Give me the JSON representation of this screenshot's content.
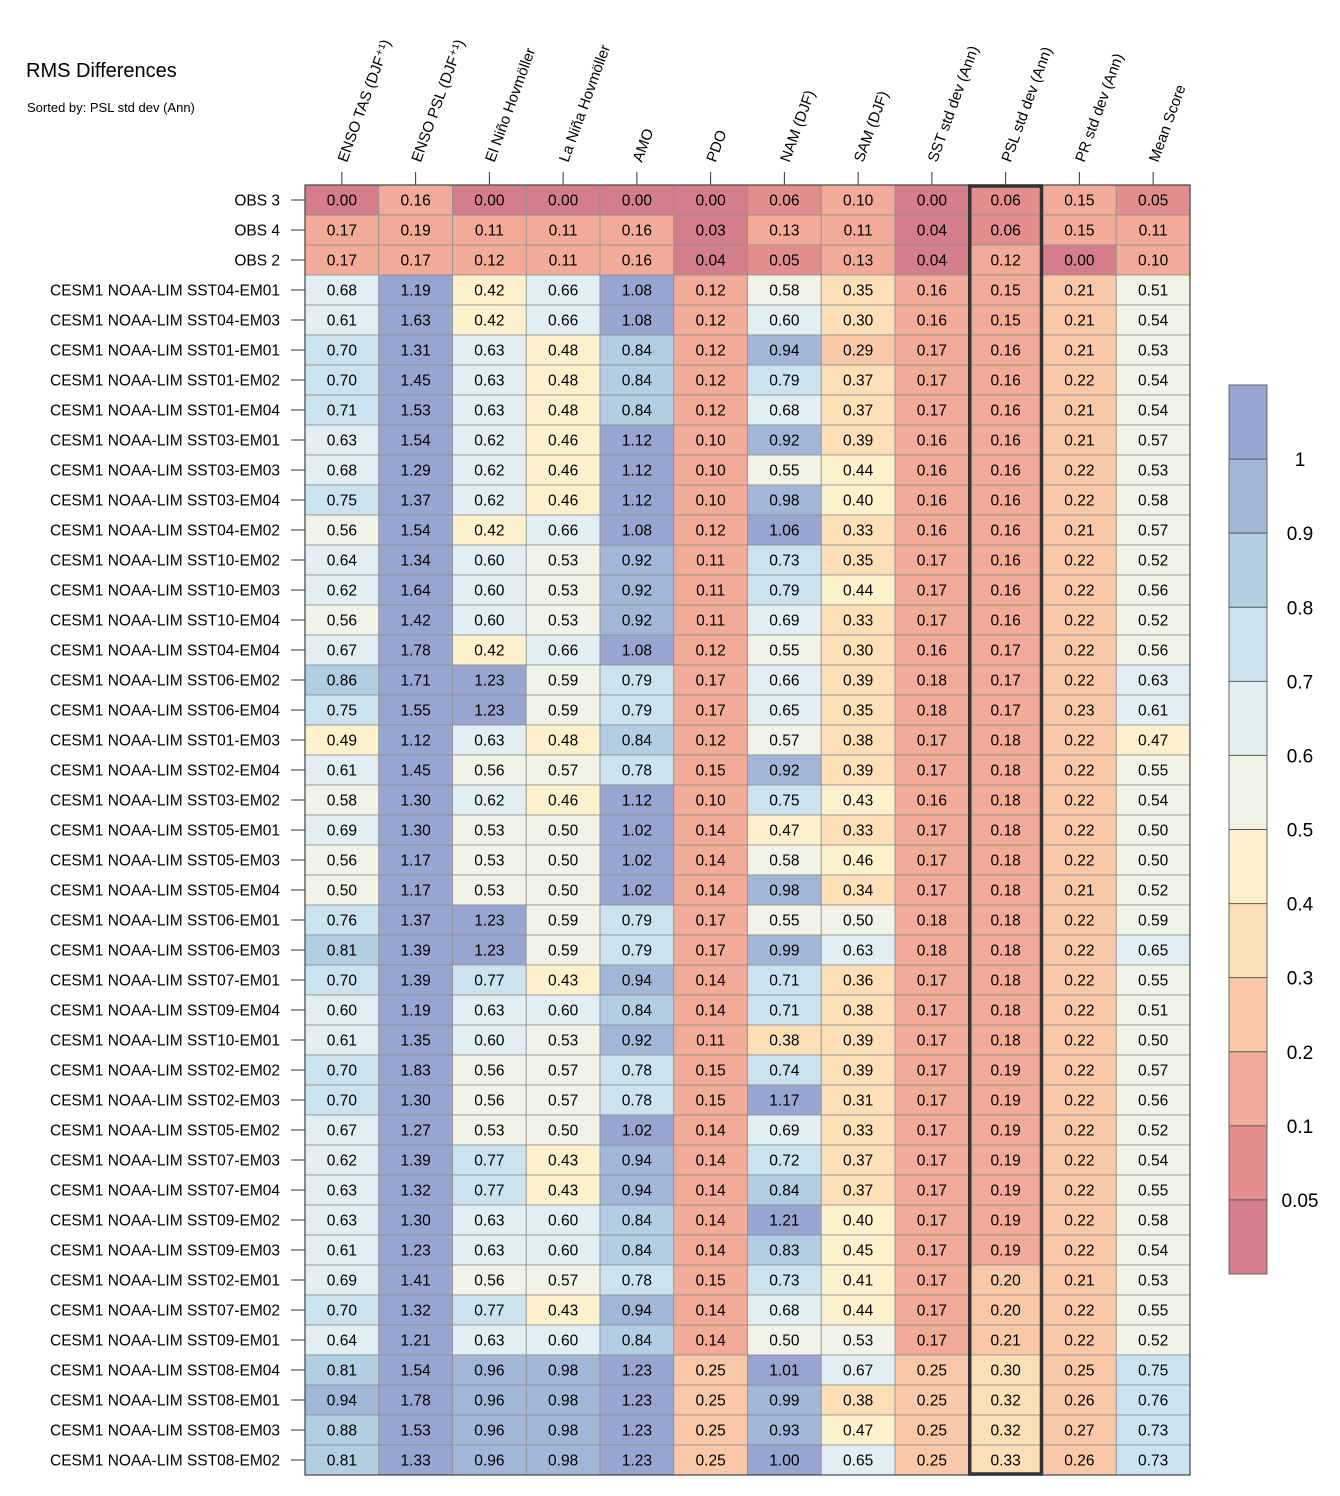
{
  "title": "RMS Differences",
  "subtitle": "Sorted by: PSL std dev (Ann)",
  "chart_data": {
    "type": "heatmap",
    "highlighted_column": "PSL std dev (Ann)",
    "columns": [
      "ENSO TAS (DJF⁺¹)",
      "ENSO PSL (DJF⁺¹)",
      "El Niño Hovmöller",
      "La Niña Hovmöller",
      "AMO",
      "PDO",
      "NAM (DJF)",
      "SAM (DJF)",
      "SST std dev (Ann)",
      "PSL std dev (Ann)",
      "PR std dev (Ann)",
      "Mean Score"
    ],
    "rows": [
      {
        "name": "OBS 3",
        "values": [
          0.0,
          0.16,
          0.0,
          0.0,
          0.0,
          0.0,
          0.06,
          0.1,
          0.0,
          0.06,
          0.15,
          0.05
        ]
      },
      {
        "name": "OBS 4",
        "values": [
          0.17,
          0.19,
          0.11,
          0.11,
          0.16,
          0.03,
          0.13,
          0.11,
          0.04,
          0.06,
          0.15,
          0.11
        ]
      },
      {
        "name": "OBS 2",
        "values": [
          0.17,
          0.17,
          0.12,
          0.11,
          0.16,
          0.04,
          0.05,
          0.13,
          0.04,
          0.12,
          0.0,
          0.1
        ]
      },
      {
        "name": "CESM1 NOAA-LIM SST04-EM01",
        "values": [
          0.68,
          1.19,
          0.42,
          0.66,
          1.08,
          0.12,
          0.58,
          0.35,
          0.16,
          0.15,
          0.21,
          0.51
        ]
      },
      {
        "name": "CESM1 NOAA-LIM SST04-EM03",
        "values": [
          0.61,
          1.63,
          0.42,
          0.66,
          1.08,
          0.12,
          0.6,
          0.3,
          0.16,
          0.15,
          0.21,
          0.54
        ]
      },
      {
        "name": "CESM1 NOAA-LIM SST01-EM01",
        "values": [
          0.7,
          1.31,
          0.63,
          0.48,
          0.84,
          0.12,
          0.94,
          0.29,
          0.17,
          0.16,
          0.21,
          0.53
        ]
      },
      {
        "name": "CESM1 NOAA-LIM SST01-EM02",
        "values": [
          0.7,
          1.45,
          0.63,
          0.48,
          0.84,
          0.12,
          0.79,
          0.37,
          0.17,
          0.16,
          0.22,
          0.54
        ]
      },
      {
        "name": "CESM1 NOAA-LIM SST01-EM04",
        "values": [
          0.71,
          1.53,
          0.63,
          0.48,
          0.84,
          0.12,
          0.68,
          0.37,
          0.17,
          0.16,
          0.21,
          0.54
        ]
      },
      {
        "name": "CESM1 NOAA-LIM SST03-EM01",
        "values": [
          0.63,
          1.54,
          0.62,
          0.46,
          1.12,
          0.1,
          0.92,
          0.39,
          0.16,
          0.16,
          0.21,
          0.57
        ]
      },
      {
        "name": "CESM1 NOAA-LIM SST03-EM03",
        "values": [
          0.68,
          1.29,
          0.62,
          0.46,
          1.12,
          0.1,
          0.55,
          0.44,
          0.16,
          0.16,
          0.22,
          0.53
        ]
      },
      {
        "name": "CESM1 NOAA-LIM SST03-EM04",
        "values": [
          0.75,
          1.37,
          0.62,
          0.46,
          1.12,
          0.1,
          0.98,
          0.4,
          0.16,
          0.16,
          0.22,
          0.58
        ]
      },
      {
        "name": "CESM1 NOAA-LIM SST04-EM02",
        "values": [
          0.56,
          1.54,
          0.42,
          0.66,
          1.08,
          0.12,
          1.06,
          0.33,
          0.16,
          0.16,
          0.21,
          0.57
        ]
      },
      {
        "name": "CESM1 NOAA-LIM SST10-EM02",
        "values": [
          0.64,
          1.34,
          0.6,
          0.53,
          0.92,
          0.11,
          0.73,
          0.35,
          0.17,
          0.16,
          0.22,
          0.52
        ]
      },
      {
        "name": "CESM1 NOAA-LIM SST10-EM03",
        "values": [
          0.62,
          1.64,
          0.6,
          0.53,
          0.92,
          0.11,
          0.79,
          0.44,
          0.17,
          0.16,
          0.22,
          0.56
        ]
      },
      {
        "name": "CESM1 NOAA-LIM SST10-EM04",
        "values": [
          0.56,
          1.42,
          0.6,
          0.53,
          0.92,
          0.11,
          0.69,
          0.33,
          0.17,
          0.16,
          0.22,
          0.52
        ]
      },
      {
        "name": "CESM1 NOAA-LIM SST04-EM04",
        "values": [
          0.67,
          1.78,
          0.42,
          0.66,
          1.08,
          0.12,
          0.55,
          0.3,
          0.16,
          0.17,
          0.22,
          0.56
        ]
      },
      {
        "name": "CESM1 NOAA-LIM SST06-EM02",
        "values": [
          0.86,
          1.71,
          1.23,
          0.59,
          0.79,
          0.17,
          0.66,
          0.39,
          0.18,
          0.17,
          0.22,
          0.63
        ]
      },
      {
        "name": "CESM1 NOAA-LIM SST06-EM04",
        "values": [
          0.75,
          1.55,
          1.23,
          0.59,
          0.79,
          0.17,
          0.65,
          0.35,
          0.18,
          0.17,
          0.23,
          0.61
        ]
      },
      {
        "name": "CESM1 NOAA-LIM SST01-EM03",
        "values": [
          0.49,
          1.12,
          0.63,
          0.48,
          0.84,
          0.12,
          0.57,
          0.38,
          0.17,
          0.18,
          0.22,
          0.47
        ]
      },
      {
        "name": "CESM1 NOAA-LIM SST02-EM04",
        "values": [
          0.61,
          1.45,
          0.56,
          0.57,
          0.78,
          0.15,
          0.92,
          0.39,
          0.17,
          0.18,
          0.22,
          0.55
        ]
      },
      {
        "name": "CESM1 NOAA-LIM SST03-EM02",
        "values": [
          0.58,
          1.3,
          0.62,
          0.46,
          1.12,
          0.1,
          0.75,
          0.43,
          0.16,
          0.18,
          0.22,
          0.54
        ]
      },
      {
        "name": "CESM1 NOAA-LIM SST05-EM01",
        "values": [
          0.69,
          1.3,
          0.53,
          0.5,
          1.02,
          0.14,
          0.47,
          0.33,
          0.17,
          0.18,
          0.22,
          0.5
        ]
      },
      {
        "name": "CESM1 NOAA-LIM SST05-EM03",
        "values": [
          0.56,
          1.17,
          0.53,
          0.5,
          1.02,
          0.14,
          0.58,
          0.46,
          0.17,
          0.18,
          0.22,
          0.5
        ]
      },
      {
        "name": "CESM1 NOAA-LIM SST05-EM04",
        "values": [
          0.5,
          1.17,
          0.53,
          0.5,
          1.02,
          0.14,
          0.98,
          0.34,
          0.17,
          0.18,
          0.21,
          0.52
        ]
      },
      {
        "name": "CESM1 NOAA-LIM SST06-EM01",
        "values": [
          0.76,
          1.37,
          1.23,
          0.59,
          0.79,
          0.17,
          0.55,
          0.5,
          0.18,
          0.18,
          0.22,
          0.59
        ]
      },
      {
        "name": "CESM1 NOAA-LIM SST06-EM03",
        "values": [
          0.81,
          1.39,
          1.23,
          0.59,
          0.79,
          0.17,
          0.99,
          0.63,
          0.18,
          0.18,
          0.22,
          0.65
        ]
      },
      {
        "name": "CESM1 NOAA-LIM SST07-EM01",
        "values": [
          0.7,
          1.39,
          0.77,
          0.43,
          0.94,
          0.14,
          0.71,
          0.36,
          0.17,
          0.18,
          0.22,
          0.55
        ]
      },
      {
        "name": "CESM1 NOAA-LIM SST09-EM04",
        "values": [
          0.6,
          1.19,
          0.63,
          0.6,
          0.84,
          0.14,
          0.71,
          0.38,
          0.17,
          0.18,
          0.22,
          0.51
        ]
      },
      {
        "name": "CESM1 NOAA-LIM SST10-EM01",
        "values": [
          0.61,
          1.35,
          0.6,
          0.53,
          0.92,
          0.11,
          0.38,
          0.39,
          0.17,
          0.18,
          0.22,
          0.5
        ]
      },
      {
        "name": "CESM1 NOAA-LIM SST02-EM02",
        "values": [
          0.7,
          1.83,
          0.56,
          0.57,
          0.78,
          0.15,
          0.74,
          0.39,
          0.17,
          0.19,
          0.22,
          0.57
        ]
      },
      {
        "name": "CESM1 NOAA-LIM SST02-EM03",
        "values": [
          0.7,
          1.3,
          0.56,
          0.57,
          0.78,
          0.15,
          1.17,
          0.31,
          0.17,
          0.19,
          0.22,
          0.56
        ]
      },
      {
        "name": "CESM1 NOAA-LIM SST05-EM02",
        "values": [
          0.67,
          1.27,
          0.53,
          0.5,
          1.02,
          0.14,
          0.69,
          0.33,
          0.17,
          0.19,
          0.22,
          0.52
        ]
      },
      {
        "name": "CESM1 NOAA-LIM SST07-EM03",
        "values": [
          0.62,
          1.39,
          0.77,
          0.43,
          0.94,
          0.14,
          0.72,
          0.37,
          0.17,
          0.19,
          0.22,
          0.54
        ]
      },
      {
        "name": "CESM1 NOAA-LIM SST07-EM04",
        "values": [
          0.63,
          1.32,
          0.77,
          0.43,
          0.94,
          0.14,
          0.84,
          0.37,
          0.17,
          0.19,
          0.22,
          0.55
        ]
      },
      {
        "name": "CESM1 NOAA-LIM SST09-EM02",
        "values": [
          0.63,
          1.3,
          0.63,
          0.6,
          0.84,
          0.14,
          1.21,
          0.4,
          0.17,
          0.19,
          0.22,
          0.58
        ]
      },
      {
        "name": "CESM1 NOAA-LIM SST09-EM03",
        "values": [
          0.61,
          1.23,
          0.63,
          0.6,
          0.84,
          0.14,
          0.83,
          0.45,
          0.17,
          0.19,
          0.22,
          0.54
        ]
      },
      {
        "name": "CESM1 NOAA-LIM SST02-EM01",
        "values": [
          0.69,
          1.41,
          0.56,
          0.57,
          0.78,
          0.15,
          0.73,
          0.41,
          0.17,
          0.2,
          0.21,
          0.53
        ]
      },
      {
        "name": "CESM1 NOAA-LIM SST07-EM02",
        "values": [
          0.7,
          1.32,
          0.77,
          0.43,
          0.94,
          0.14,
          0.68,
          0.44,
          0.17,
          0.2,
          0.22,
          0.55
        ]
      },
      {
        "name": "CESM1 NOAA-LIM SST09-EM01",
        "values": [
          0.64,
          1.21,
          0.63,
          0.6,
          0.84,
          0.14,
          0.5,
          0.53,
          0.17,
          0.21,
          0.22,
          0.52
        ]
      },
      {
        "name": "CESM1 NOAA-LIM SST08-EM04",
        "values": [
          0.81,
          1.54,
          0.96,
          0.98,
          1.23,
          0.25,
          1.01,
          0.67,
          0.25,
          0.3,
          0.25,
          0.75
        ]
      },
      {
        "name": "CESM1 NOAA-LIM SST08-EM01",
        "values": [
          0.94,
          1.78,
          0.96,
          0.98,
          1.23,
          0.25,
          0.99,
          0.38,
          0.25,
          0.32,
          0.26,
          0.76
        ]
      },
      {
        "name": "CESM1 NOAA-LIM SST08-EM03",
        "values": [
          0.88,
          1.53,
          0.96,
          0.98,
          1.23,
          0.25,
          0.93,
          0.47,
          0.25,
          0.32,
          0.27,
          0.73
        ]
      },
      {
        "name": "CESM1 NOAA-LIM SST08-EM02",
        "values": [
          0.81,
          1.33,
          0.96,
          0.98,
          1.23,
          0.25,
          1.0,
          0.65,
          0.25,
          0.33,
          0.26,
          0.73
        ]
      }
    ],
    "colorbar": {
      "bounds": [
        0.05,
        0.1,
        0.2,
        0.3,
        0.4,
        0.5,
        0.6,
        0.7,
        0.8,
        0.9,
        1
      ],
      "tick_labels": [
        "0.05",
        "0.1",
        "0.2",
        "0.3",
        "0.4",
        "0.5",
        "0.6",
        "0.7",
        "0.8",
        "0.9",
        "1"
      ],
      "colors": [
        "#d47e8c",
        "#e38e8e",
        "#f1ab98",
        "#f8c8a9",
        "#fcdfb6",
        "#fdf0cc",
        "#f3f2e7",
        "#e1eff4",
        "#cae3ef",
        "#b1cee3",
        "#a2b7d8",
        "#98a5d0"
      ]
    }
  }
}
